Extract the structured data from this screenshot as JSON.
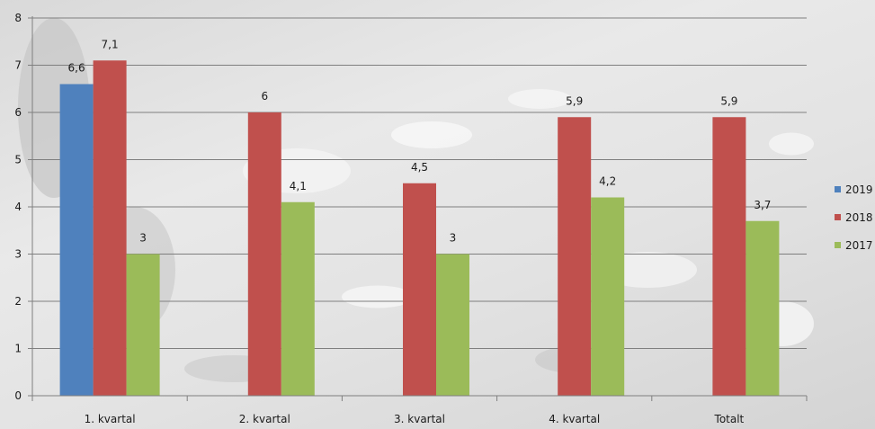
{
  "chart_data": {
    "type": "bar",
    "categories": [
      "1. kvartal",
      "2. kvartal",
      "3. kvartal",
      "4. kvartal",
      "Totalt"
    ],
    "series": [
      {
        "name": "2019",
        "color": "#4f81bd",
        "values": [
          6.6,
          null,
          null,
          null,
          null
        ],
        "labels": [
          "6,6",
          "",
          "",
          "",
          ""
        ]
      },
      {
        "name": "2018",
        "color": "#c0504d",
        "values": [
          7.1,
          6,
          4.5,
          5.9,
          5.9
        ],
        "labels": [
          "7,1",
          "6",
          "4,5",
          "5,9",
          "5,9"
        ]
      },
      {
        "name": "2017",
        "color": "#9bbb59",
        "values": [
          3,
          4.1,
          3,
          4.2,
          3.7
        ],
        "labels": [
          "3",
          "4,1",
          "3",
          "4,2",
          "3,7"
        ]
      }
    ],
    "ylim": [
      0,
      8
    ],
    "yticks": [
      "0",
      "1",
      "2",
      "3",
      "4",
      "5",
      "6",
      "7",
      "8"
    ],
    "grid": true,
    "legend_position": "right",
    "title": "",
    "xlabel": "",
    "ylabel": ""
  }
}
